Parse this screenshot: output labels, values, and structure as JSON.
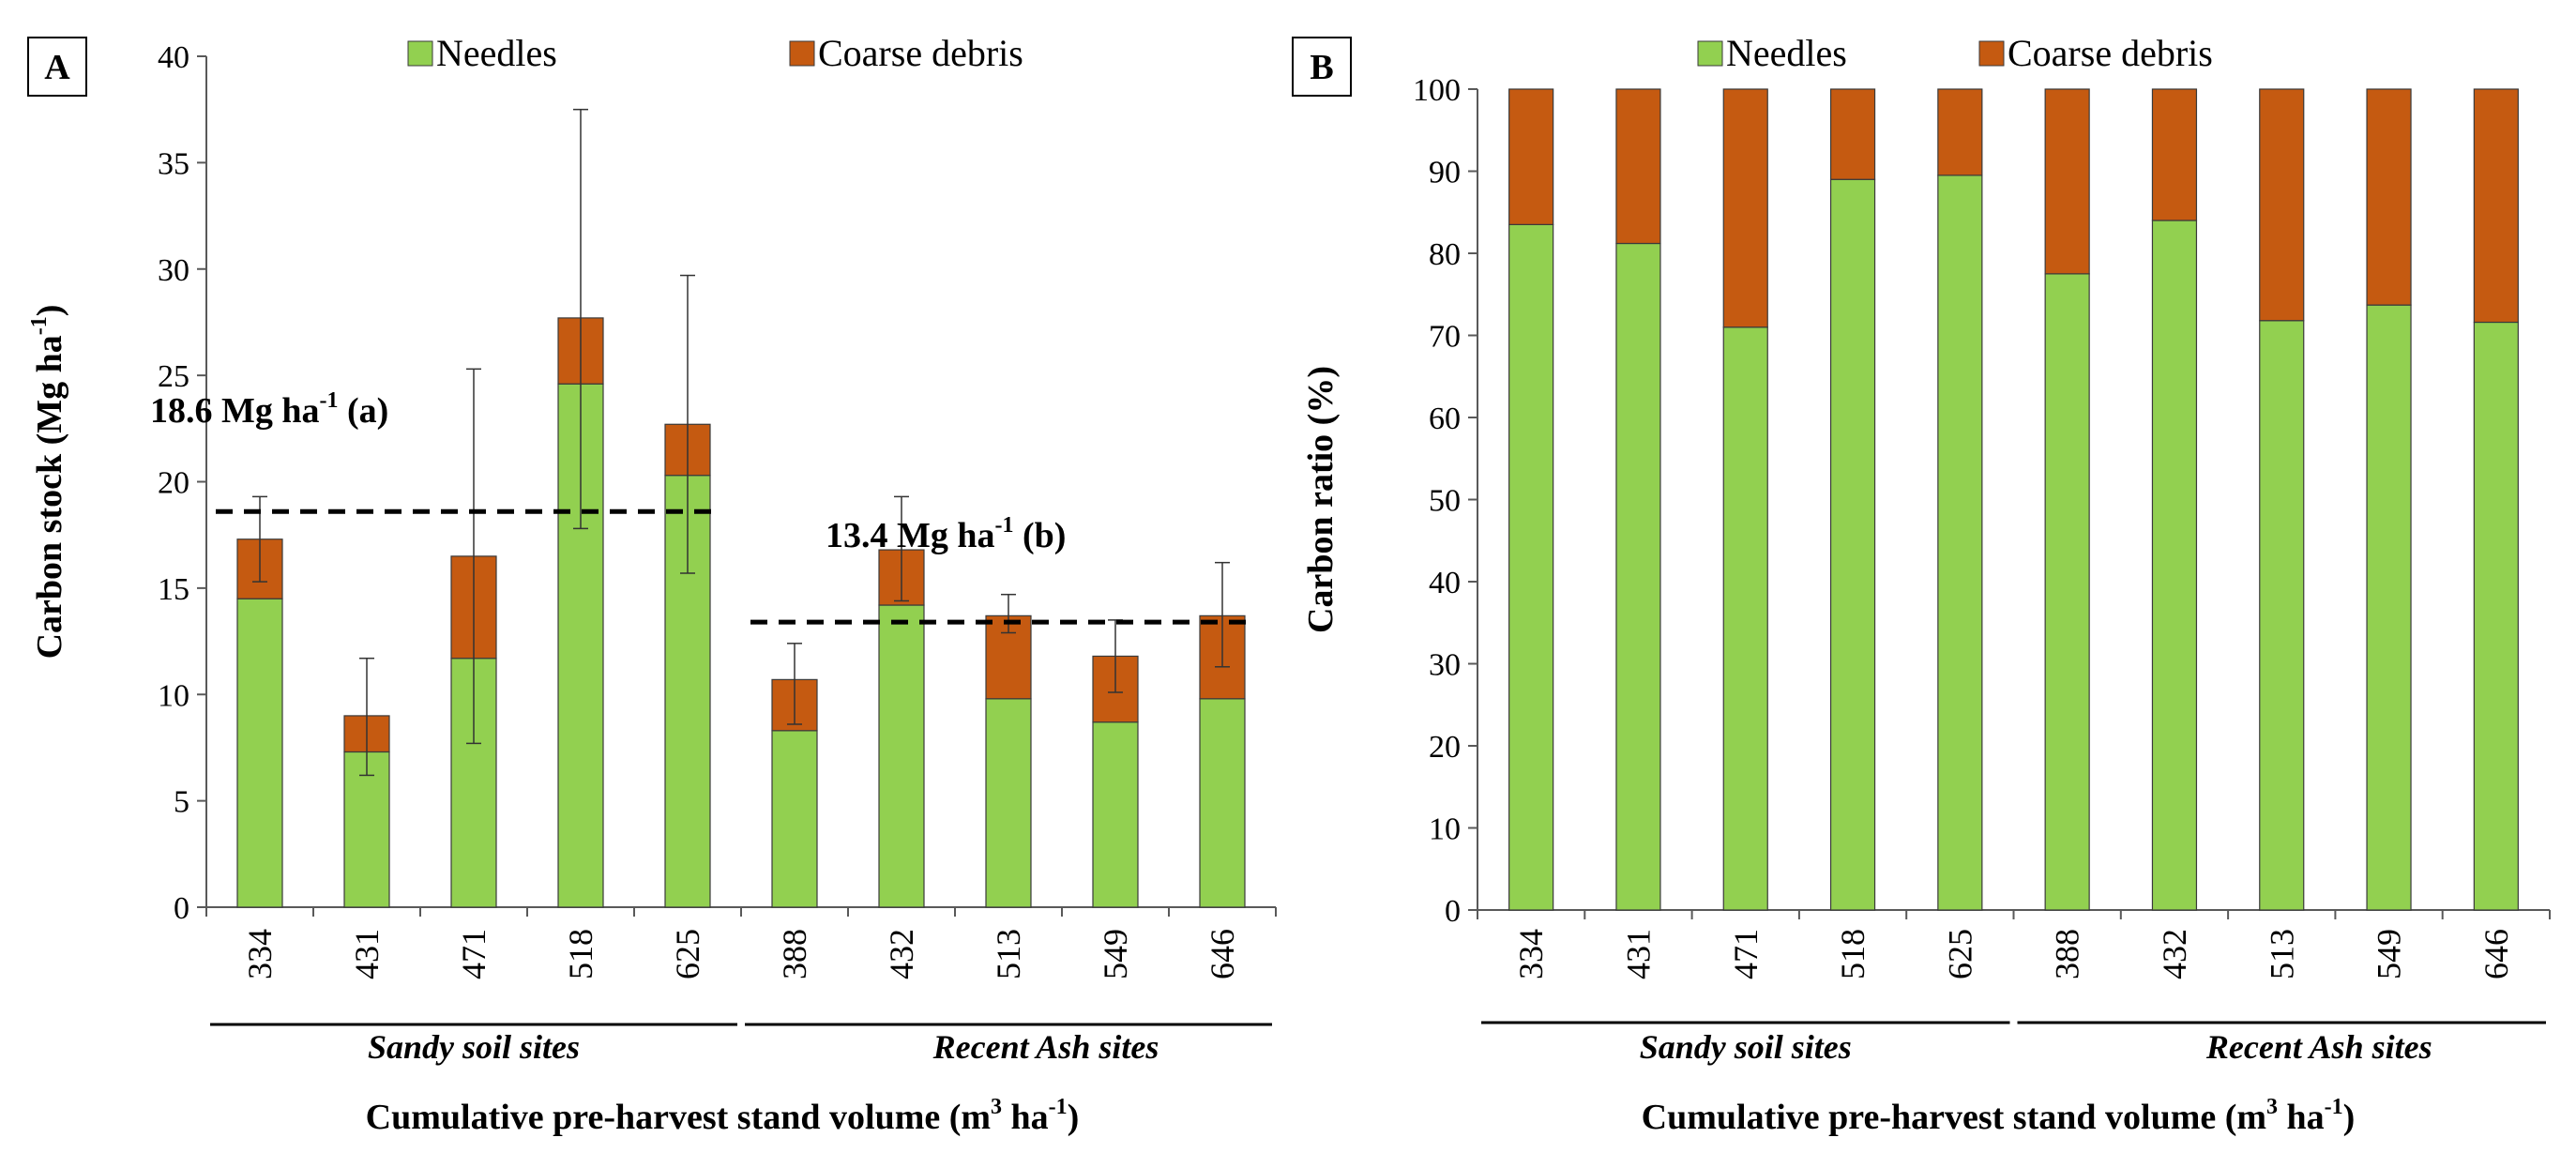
{
  "colors": {
    "needles": "#92D050",
    "coarse": "#C55A11",
    "axis": "#595959",
    "bar_edge": "#3a3a3a"
  },
  "chart_data": [
    {
      "panel": "A",
      "type": "bar",
      "stacked": true,
      "categories": [
        "334",
        "431",
        "471",
        "518",
        "625",
        "388",
        "432",
        "513",
        "549",
        "646"
      ],
      "series": [
        {
          "name": "Needles",
          "values": [
            14.5,
            7.3,
            11.7,
            24.6,
            20.3,
            8.3,
            14.2,
            9.8,
            8.7,
            9.8
          ]
        },
        {
          "name": "Coarse debris",
          "values": [
            2.8,
            1.7,
            4.8,
            3.1,
            2.4,
            2.4,
            2.6,
            3.9,
            3.1,
            3.9
          ]
        }
      ],
      "error_bars": {
        "low": [
          15.3,
          6.2,
          7.7,
          17.8,
          15.7,
          8.6,
          14.4,
          12.9,
          10.1,
          11.3
        ],
        "high": [
          19.3,
          11.7,
          25.3,
          37.5,
          29.7,
          12.4,
          19.3,
          14.7,
          13.5,
          16.2
        ]
      },
      "means": [
        {
          "value": 18.6,
          "from": 0,
          "to": 4,
          "label": "18.6 Mg ha",
          "sup": "-1",
          "suffix": " (a)"
        },
        {
          "value": 13.4,
          "from": 5,
          "to": 9,
          "label": "13.4 Mg ha",
          "sup": "-1",
          "suffix": " (b)"
        }
      ],
      "ylim": [
        0,
        40
      ],
      "yticks": [
        0,
        5,
        10,
        15,
        20,
        25,
        30,
        35,
        40
      ],
      "ylabel": "Carbon stock (Mg ha",
      "ylabel_sup": "-1",
      "ylabel_tail": ")",
      "groups": [
        {
          "label": "Sandy soil sites",
          "from": 0,
          "to": 4
        },
        {
          "label": "Recent Ash sites",
          "from": 5,
          "to": 9
        }
      ],
      "xlabel": "Cumulative pre-harvest stand volume (m",
      "xlabel_sup": "3",
      "xlabel_tail": " ha",
      "xlabel_sup2": "-1",
      "xlabel_end": ")",
      "legend": [
        "Needles",
        "Coarse debris"
      ],
      "legend_position": "top"
    },
    {
      "panel": "B",
      "type": "bar",
      "stacked": true,
      "categories": [
        "334",
        "431",
        "471",
        "518",
        "625",
        "388",
        "432",
        "513",
        "549",
        "646"
      ],
      "series": [
        {
          "name": "Needles",
          "values": [
            83.5,
            81.2,
            71.0,
            89.0,
            89.5,
            77.5,
            84.0,
            71.8,
            73.7,
            71.6
          ]
        },
        {
          "name": "Coarse debris",
          "values": [
            16.5,
            18.8,
            29.0,
            11.0,
            10.5,
            22.5,
            16.0,
            28.2,
            26.3,
            28.4
          ]
        }
      ],
      "ylim": [
        0,
        100
      ],
      "yticks": [
        0,
        10,
        20,
        30,
        40,
        50,
        60,
        70,
        80,
        90,
        100
      ],
      "ylabel": "Carbon ratio (%)",
      "groups": [
        {
          "label": "Sandy soil sites",
          "from": 0,
          "to": 4
        },
        {
          "label": "Recent Ash sites",
          "from": 5,
          "to": 9
        }
      ],
      "xlabel": "Cumulative pre-harvest stand volume (m",
      "xlabel_sup": "3",
      "xlabel_tail": " ha",
      "xlabel_sup2": "-1",
      "xlabel_end": ")",
      "legend": [
        "Needles",
        "Coarse debris"
      ],
      "legend_position": "top"
    }
  ]
}
